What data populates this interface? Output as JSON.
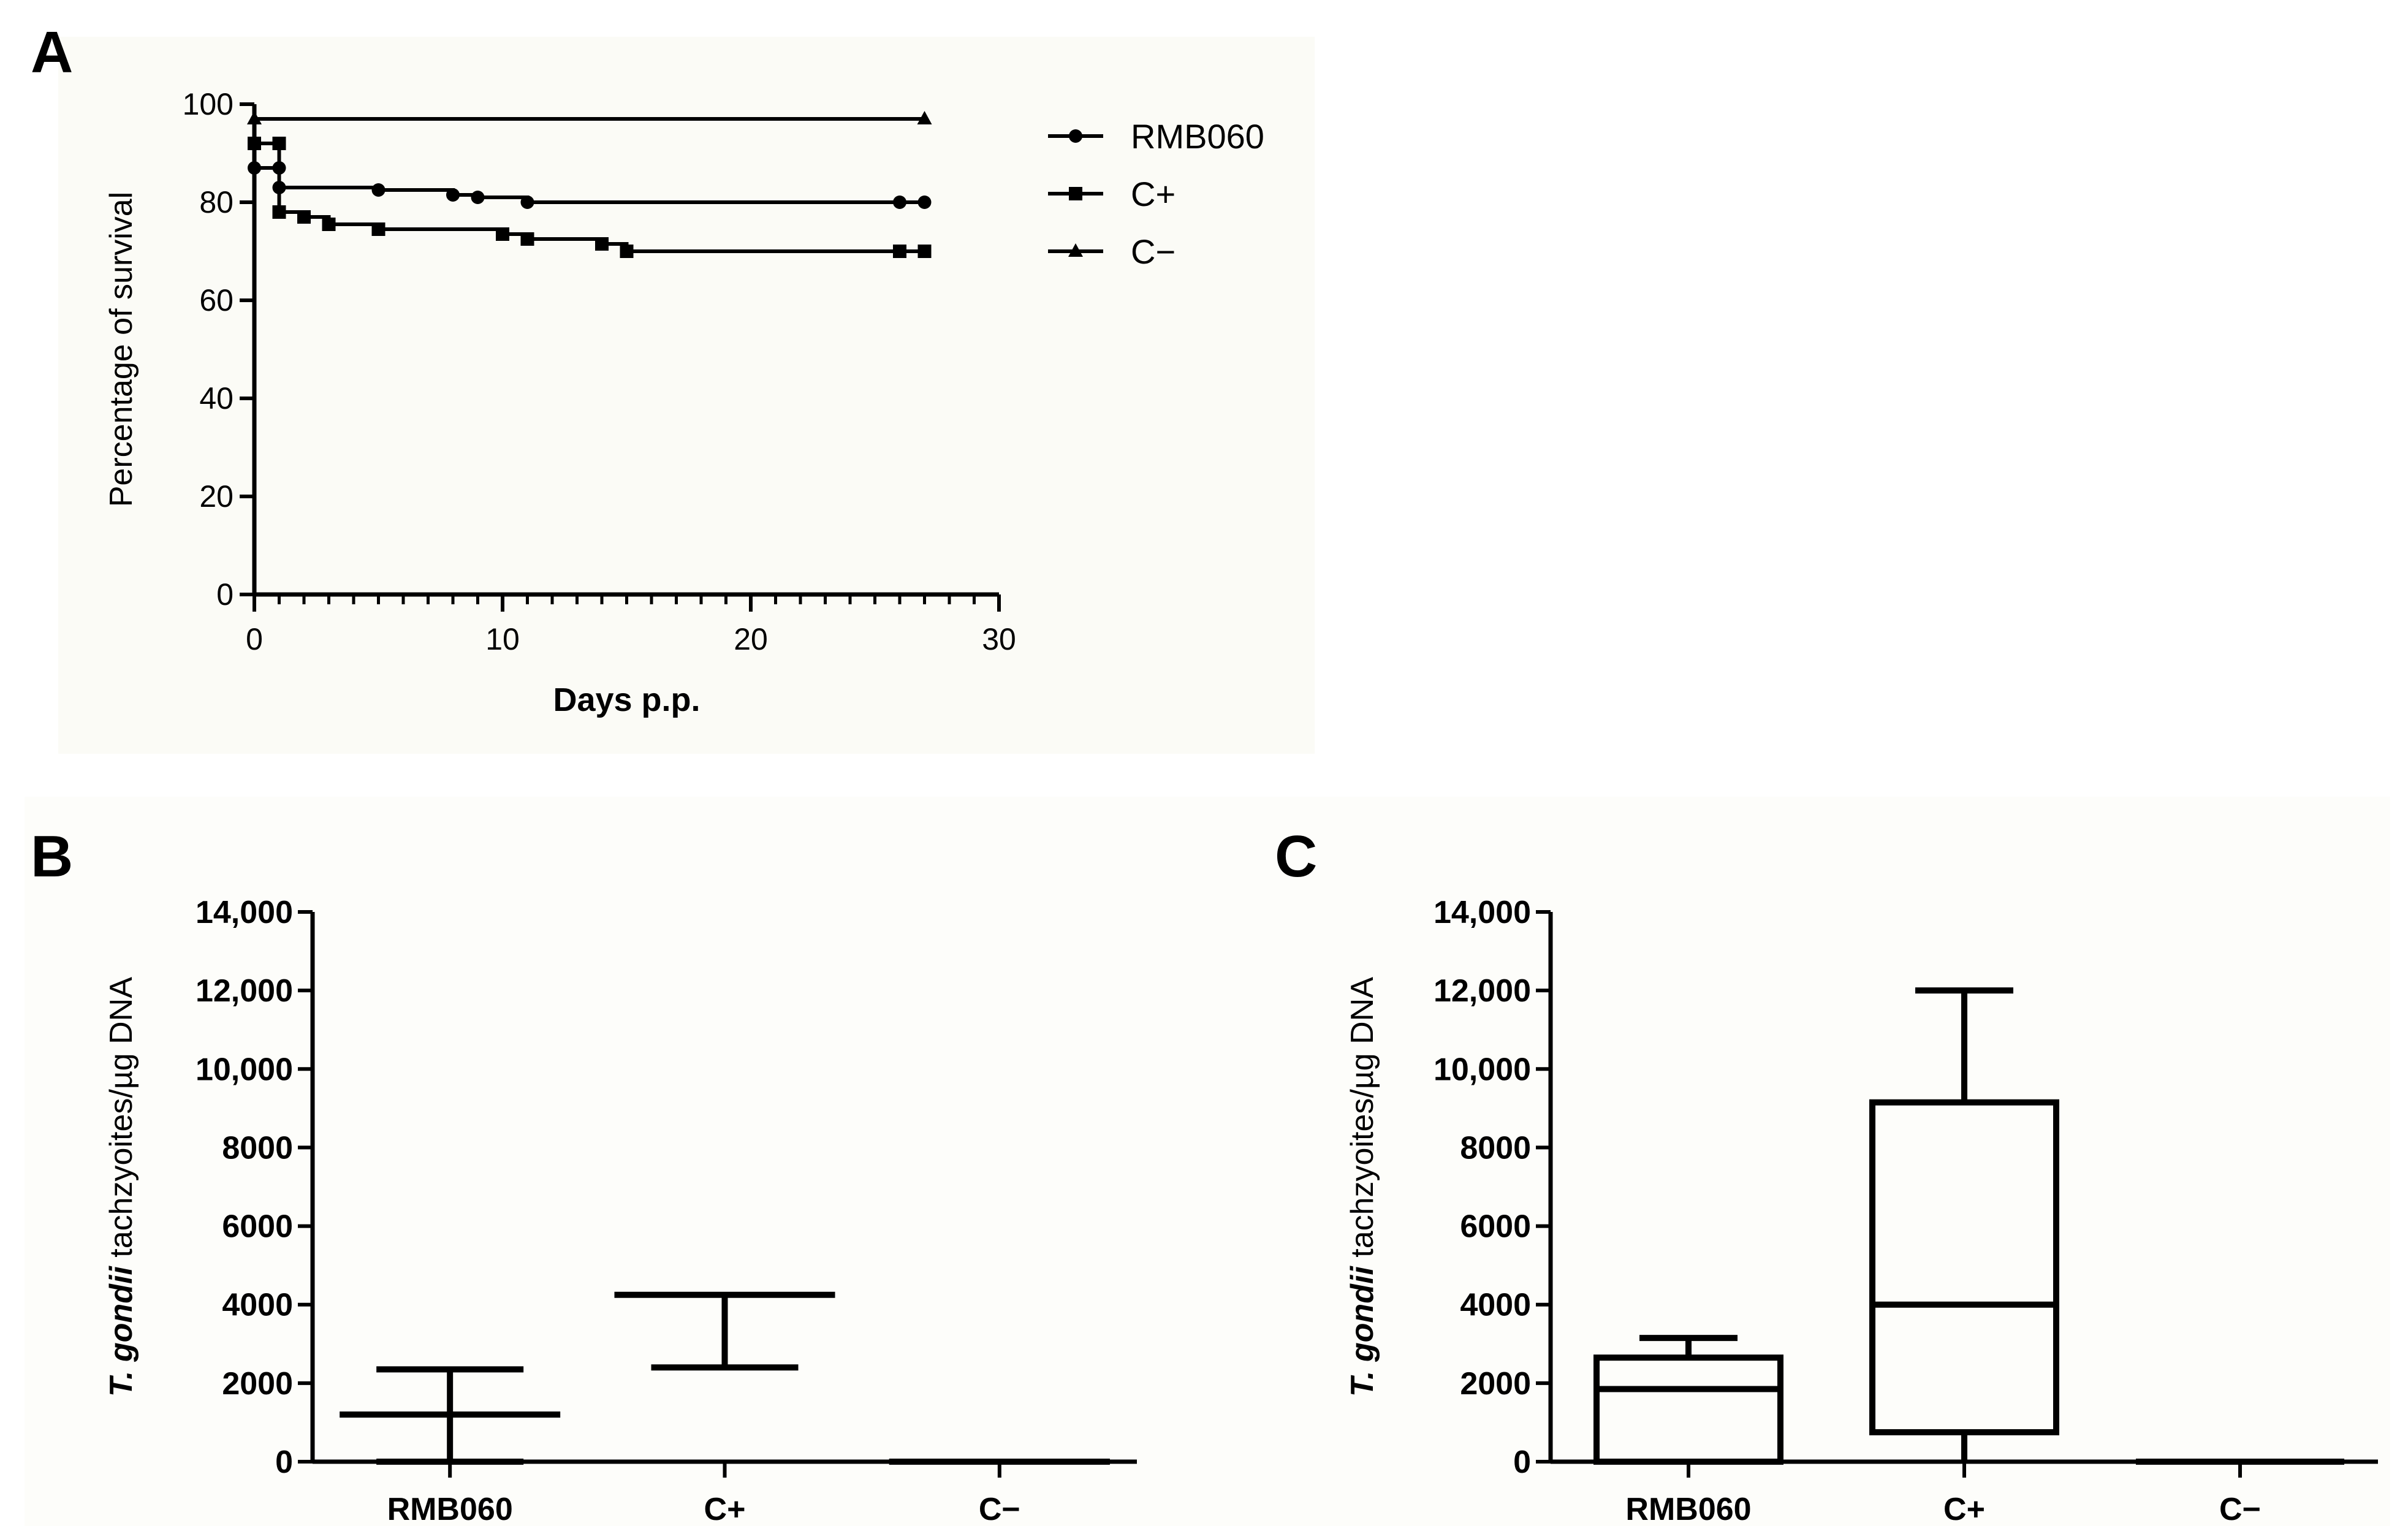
{
  "chart_data": [
    {
      "panel": "A",
      "type": "line",
      "xlabel": "Days p.p.",
      "ylabel": "Percentage of survival",
      "xlim": [
        0,
        30
      ],
      "ylim": [
        0,
        100
      ],
      "xticks": [
        0,
        10,
        20,
        30
      ],
      "yticks": [
        0,
        20,
        40,
        60,
        80,
        100
      ],
      "legend_position": "top-right",
      "series": [
        {
          "name": "RMB060",
          "marker": "circle",
          "x": [
            0,
            1,
            1,
            5,
            8,
            9,
            11,
            26,
            27
          ],
          "y": [
            87,
            87,
            83,
            82.5,
            81.5,
            81,
            80,
            80,
            80
          ]
        },
        {
          "name": "C+",
          "marker": "square",
          "x": [
            0,
            1,
            1,
            2,
            3,
            5,
            10,
            11,
            14,
            15,
            26,
            27
          ],
          "y": [
            92,
            92,
            78,
            77,
            75.5,
            74.5,
            73.5,
            72.5,
            71.5,
            70,
            70,
            70
          ]
        },
        {
          "name": "C−",
          "marker": "triangle",
          "x": [
            0,
            27
          ],
          "y": [
            97,
            97
          ]
        }
      ]
    },
    {
      "panel": "B",
      "type": "box",
      "ylabel_italic": "T. gondii",
      "ylabel_rest": " tachzyoites/µg DNA",
      "ylim": [
        0,
        14000
      ],
      "yticks": [
        0,
        2000,
        4000,
        6000,
        8000,
        10000,
        12000,
        14000
      ],
      "ytick_labels": [
        "0",
        "2000",
        "4000",
        "6000",
        "8000",
        "10,000",
        "12,000",
        "14,000"
      ],
      "categories": [
        "RMB060",
        "C+",
        "C−"
      ],
      "groups": [
        {
          "name": "RMB060",
          "center": 1200,
          "upper": 2350,
          "lower": 0
        },
        {
          "name": "C+",
          "center": 4250,
          "upper": 4250,
          "lower": 2400
        },
        {
          "name": "C−",
          "center": 0,
          "upper": 0,
          "lower": 0
        }
      ]
    },
    {
      "panel": "C",
      "type": "box",
      "ylabel_italic": "T. gondii",
      "ylabel_rest": " tachzyoites/µg DNA",
      "ylim": [
        0,
        14000
      ],
      "yticks": [
        0,
        2000,
        4000,
        6000,
        8000,
        10000,
        12000,
        14000
      ],
      "ytick_labels": [
        "0",
        "2000",
        "4000",
        "6000",
        "8000",
        "10,000",
        "12,000",
        "14,000"
      ],
      "categories": [
        "RMB060",
        "C+",
        "C−"
      ],
      "groups": [
        {
          "name": "RMB060",
          "min": 0,
          "q1": 0,
          "median": 1850,
          "q3": 2650,
          "max": 3150
        },
        {
          "name": "C+",
          "min": 0,
          "q1": 750,
          "median": 4000,
          "q3": 9150,
          "max": 12000
        },
        {
          "name": "C−",
          "min": 0,
          "q1": 0,
          "median": 0,
          "q3": 0,
          "max": 0
        }
      ]
    }
  ],
  "panel_letters": {
    "a": "A",
    "b": "B",
    "c": "C"
  }
}
